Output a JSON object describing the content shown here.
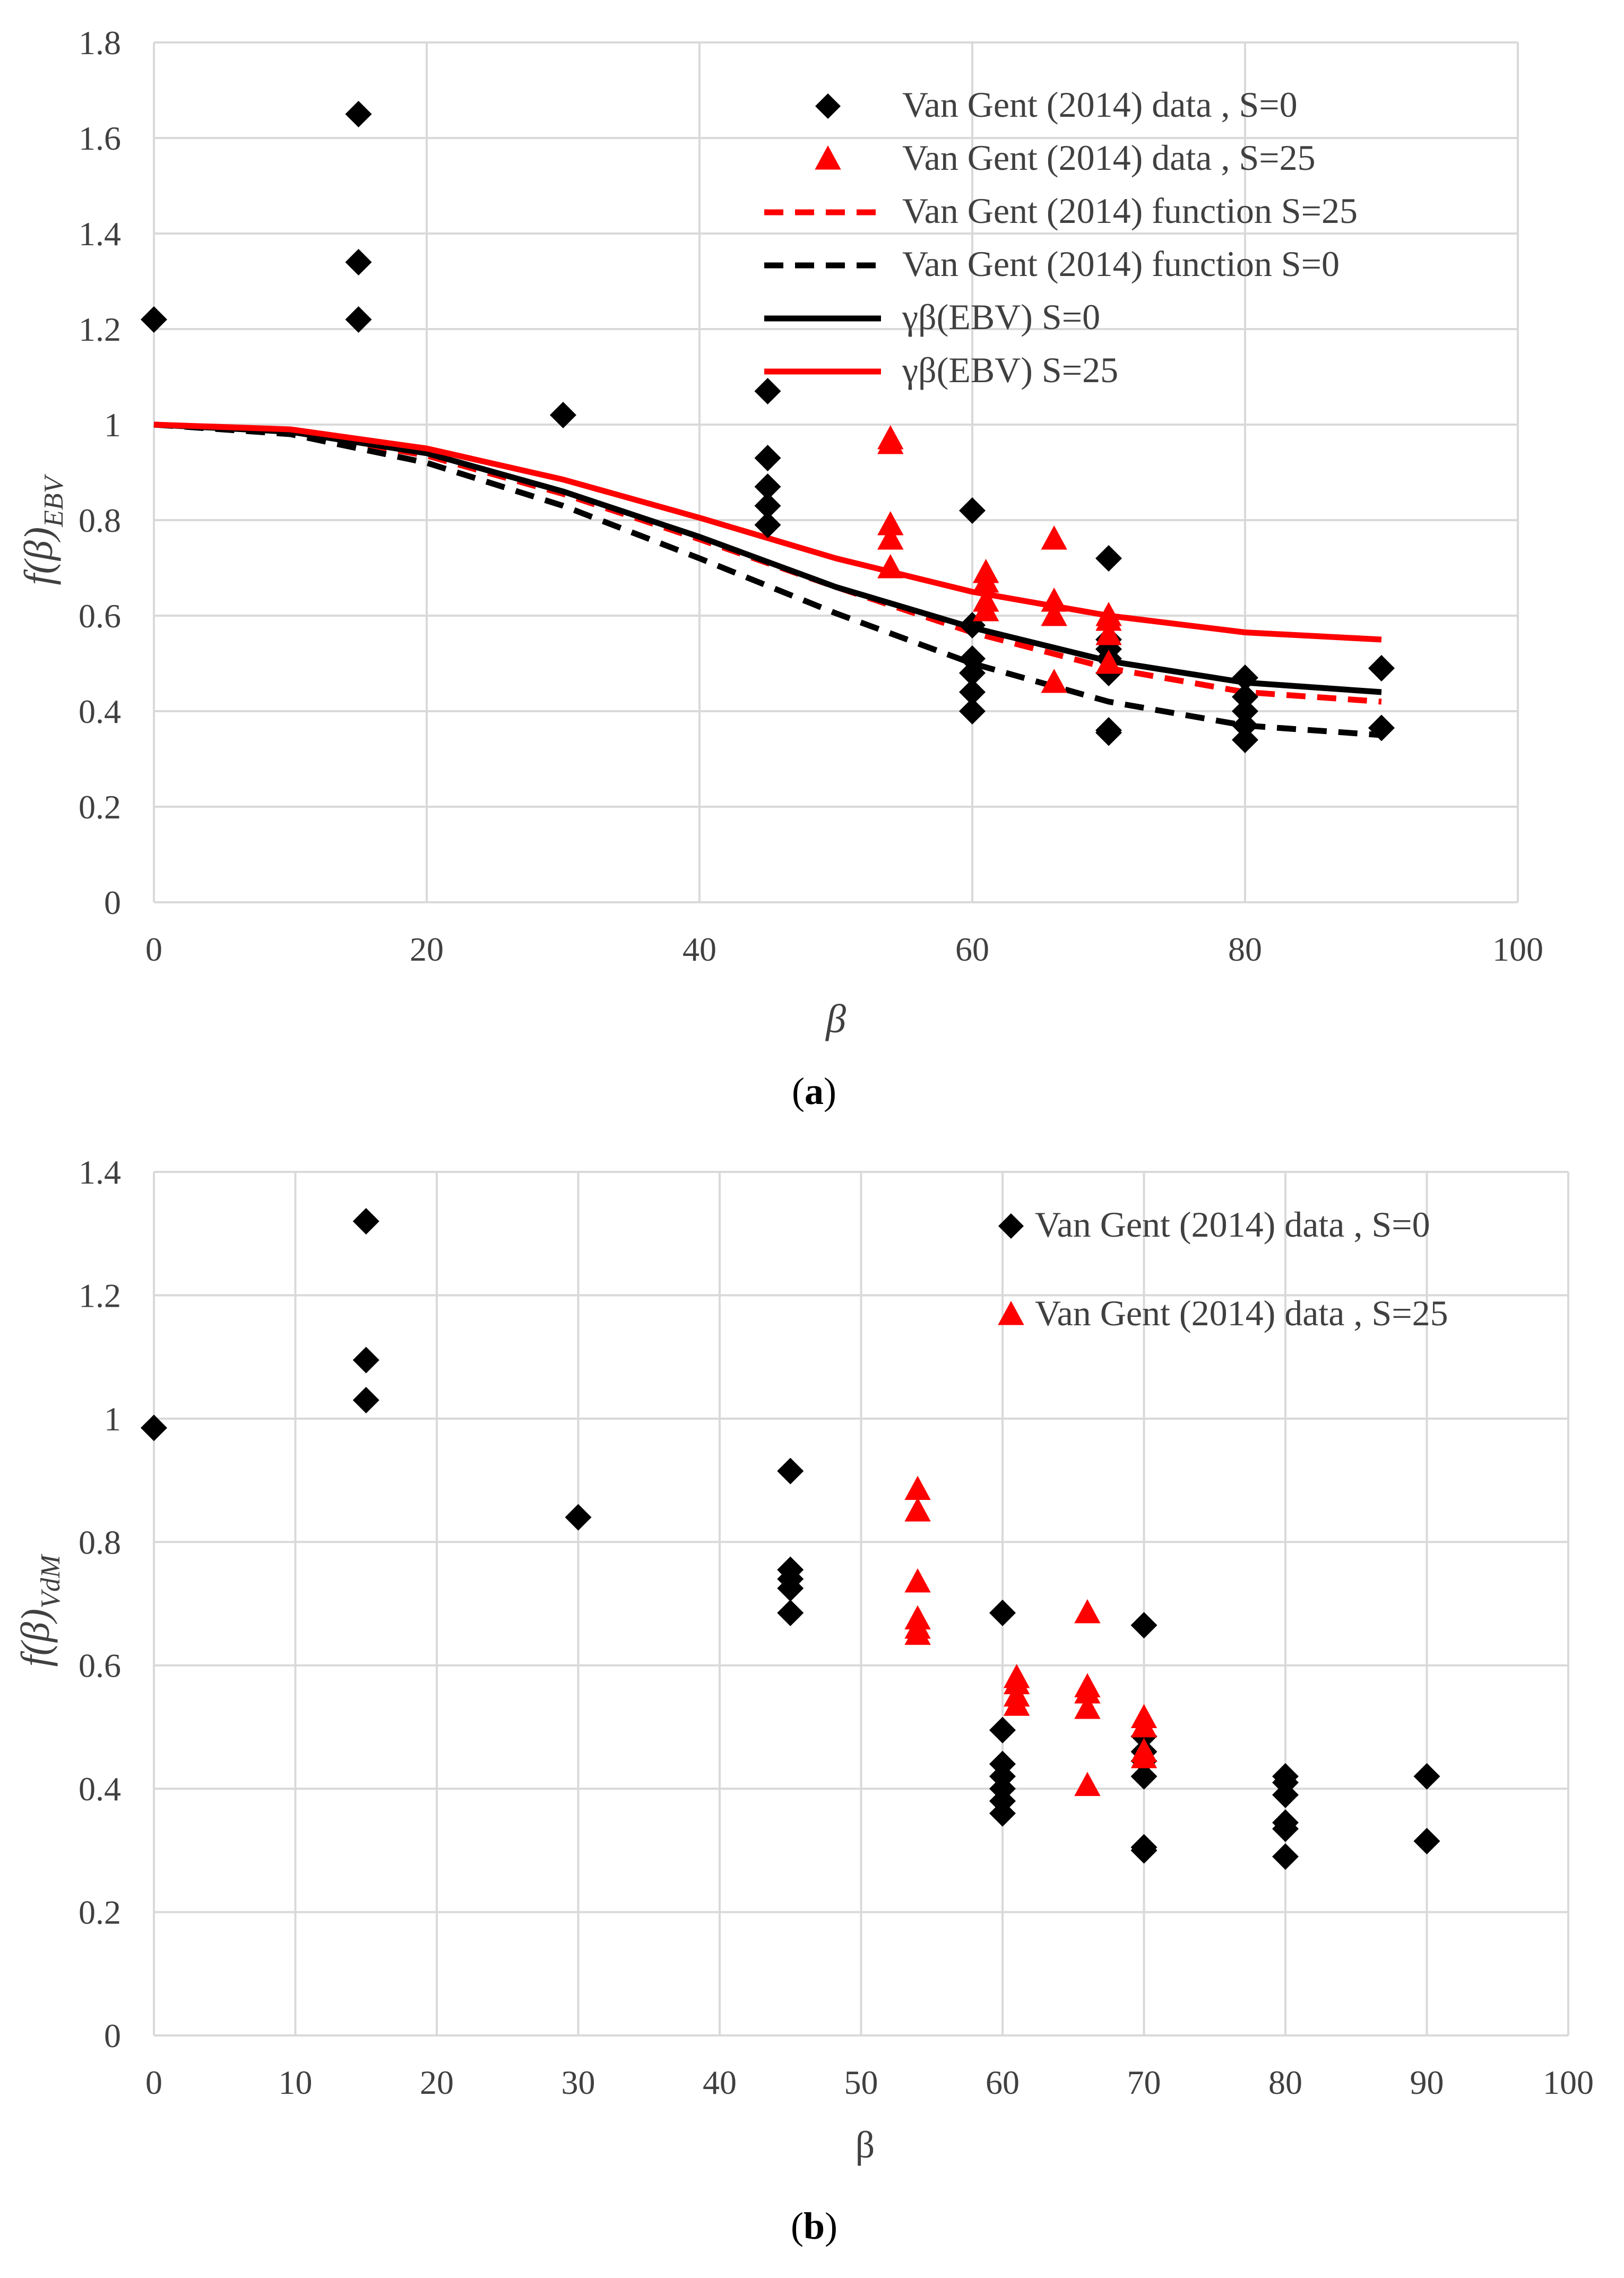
{
  "chart_data": [
    {
      "id": "a",
      "type": "scatter",
      "panel_label": "(a)",
      "panel_letter": "a",
      "xlabel": "β",
      "ylabel": {
        "main": "f(β)",
        "sub": "EBV"
      },
      "xlim": [
        0,
        100
      ],
      "ylim": [
        0,
        1.8
      ],
      "xticks": [
        0,
        20,
        40,
        60,
        80,
        100
      ],
      "yticks": [
        0,
        0.2,
        0.4,
        0.6,
        0.8,
        1,
        1.2,
        1.4,
        1.6,
        1.8
      ],
      "grid": true,
      "legend_placement": "top-right",
      "colors": {
        "black": "#000000",
        "red": "#ff0000"
      },
      "series": [
        {
          "name": "Van Gent  (2014) data , S=0",
          "kind": "points",
          "marker": "diamond",
          "color": "#000000",
          "points": [
            [
              0,
              1.22
            ],
            [
              15,
              1.65
            ],
            [
              15,
              1.34
            ],
            [
              15,
              1.22
            ],
            [
              30,
              1.02
            ],
            [
              45,
              1.07
            ],
            [
              45,
              0.93
            ],
            [
              45,
              0.87
            ],
            [
              45,
              0.83
            ],
            [
              45,
              0.79
            ],
            [
              60,
              0.82
            ],
            [
              60,
              0.58
            ],
            [
              60,
              0.51
            ],
            [
              60,
              0.48
            ],
            [
              60,
              0.44
            ],
            [
              60,
              0.4
            ],
            [
              70,
              0.72
            ],
            [
              70,
              0.55
            ],
            [
              70,
              0.53
            ],
            [
              70,
              0.51
            ],
            [
              70,
              0.48
            ],
            [
              70,
              0.36
            ],
            [
              70,
              0.355
            ],
            [
              80,
              0.47
            ],
            [
              80,
              0.43
            ],
            [
              80,
              0.4
            ],
            [
              80,
              0.37
            ],
            [
              80,
              0.34
            ],
            [
              90,
              0.49
            ],
            [
              90,
              0.365
            ]
          ]
        },
        {
          "name": "Van Gent  (2014) data , S=25",
          "kind": "points",
          "marker": "triangle",
          "color": "#ff0000",
          "points": [
            [
              54,
              0.97
            ],
            [
              54,
              0.96
            ],
            [
              54,
              0.79
            ],
            [
              54,
              0.76
            ],
            [
              54,
              0.7
            ],
            [
              61,
              0.69
            ],
            [
              61,
              0.67
            ],
            [
              61,
              0.63
            ],
            [
              61,
              0.61
            ],
            [
              66,
              0.76
            ],
            [
              66,
              0.63
            ],
            [
              66,
              0.6
            ],
            [
              66,
              0.46
            ],
            [
              70,
              0.6
            ],
            [
              70,
              0.59
            ],
            [
              70,
              0.56
            ],
            [
              70,
              0.5
            ]
          ]
        },
        {
          "name": "Van Gent (2014) function S=25",
          "kind": "line",
          "dash": true,
          "color": "#ff0000",
          "points": [
            [
              0,
              1.0
            ],
            [
              10,
              0.985
            ],
            [
              20,
              0.935
            ],
            [
              30,
              0.855
            ],
            [
              40,
              0.76
            ],
            [
              50,
              0.66
            ],
            [
              60,
              0.565
            ],
            [
              70,
              0.49
            ],
            [
              80,
              0.44
            ],
            [
              90,
              0.42
            ]
          ]
        },
        {
          "name": "Van Gent (2014)  function S=0",
          "kind": "line",
          "dash": true,
          "color": "#000000",
          "points": [
            [
              0,
              1.0
            ],
            [
              10,
              0.98
            ],
            [
              20,
              0.92
            ],
            [
              30,
              0.83
            ],
            [
              40,
              0.72
            ],
            [
              50,
              0.605
            ],
            [
              60,
              0.5
            ],
            [
              70,
              0.42
            ],
            [
              80,
              0.37
            ],
            [
              90,
              0.35
            ]
          ]
        },
        {
          "name": "γβ(EBV) S=0",
          "kind": "line",
          "dash": false,
          "color": "#000000",
          "points": [
            [
              0,
              1.0
            ],
            [
              10,
              0.985
            ],
            [
              20,
              0.94
            ],
            [
              30,
              0.86
            ],
            [
              40,
              0.765
            ],
            [
              50,
              0.66
            ],
            [
              60,
              0.575
            ],
            [
              70,
              0.505
            ],
            [
              80,
              0.46
            ],
            [
              90,
              0.44
            ]
          ]
        },
        {
          "name": "γβ(EBV) S=25",
          "kind": "line",
          "dash": false,
          "color": "#ff0000",
          "points": [
            [
              0,
              1.0
            ],
            [
              10,
              0.99
            ],
            [
              20,
              0.95
            ],
            [
              30,
              0.885
            ],
            [
              40,
              0.805
            ],
            [
              50,
              0.72
            ],
            [
              60,
              0.65
            ],
            [
              70,
              0.6
            ],
            [
              80,
              0.565
            ],
            [
              90,
              0.55
            ]
          ]
        }
      ]
    },
    {
      "id": "b",
      "type": "scatter",
      "panel_label": "(b)",
      "panel_letter": "b",
      "xlabel": "β",
      "ylabel": {
        "main": "f(β)",
        "sub": "VdM"
      },
      "xlim": [
        0,
        100
      ],
      "ylim": [
        0,
        1.4
      ],
      "xticks": [
        0,
        10,
        20,
        30,
        40,
        50,
        60,
        70,
        80,
        90,
        100
      ],
      "yticks": [
        0,
        0.2,
        0.4,
        0.6,
        0.8,
        1,
        1.2,
        1.4
      ],
      "grid": true,
      "legend_placement": "top-right",
      "colors": {
        "black": "#000000",
        "red": "#ff0000"
      },
      "series": [
        {
          "name": "Van Gent  (2014) data , S=0",
          "kind": "points",
          "marker": "diamond",
          "color": "#000000",
          "points": [
            [
              0,
              0.985
            ],
            [
              15,
              1.32
            ],
            [
              15,
              1.095
            ],
            [
              15,
              1.03
            ],
            [
              30,
              0.84
            ],
            [
              45,
              0.915
            ],
            [
              45,
              0.755
            ],
            [
              45,
              0.74
            ],
            [
              45,
              0.725
            ],
            [
              45,
              0.685
            ],
            [
              60,
              0.685
            ],
            [
              60,
              0.495
            ],
            [
              60,
              0.44
            ],
            [
              60,
              0.42
            ],
            [
              60,
              0.4
            ],
            [
              60,
              0.38
            ],
            [
              60,
              0.36
            ],
            [
              70,
              0.665
            ],
            [
              70,
              0.485
            ],
            [
              70,
              0.46
            ],
            [
              70,
              0.445
            ],
            [
              70,
              0.42
            ],
            [
              70,
              0.305
            ],
            [
              70,
              0.3
            ],
            [
              80,
              0.42
            ],
            [
              80,
              0.41
            ],
            [
              80,
              0.39
            ],
            [
              80,
              0.345
            ],
            [
              80,
              0.335
            ],
            [
              80,
              0.29
            ],
            [
              90,
              0.42
            ],
            [
              90,
              0.315
            ]
          ]
        },
        {
          "name": "Van Gent  (2014) data , S=25",
          "kind": "points",
          "marker": "triangle",
          "color": "#ff0000",
          "points": [
            [
              54,
              0.885
            ],
            [
              54,
              0.85
            ],
            [
              54,
              0.735
            ],
            [
              54,
              0.675
            ],
            [
              54,
              0.66
            ],
            [
              54,
              0.65
            ],
            [
              61,
              0.58
            ],
            [
              61,
              0.57
            ],
            [
              61,
              0.55
            ],
            [
              61,
              0.535
            ],
            [
              66,
              0.685
            ],
            [
              66,
              0.565
            ],
            [
              66,
              0.555
            ],
            [
              66,
              0.53
            ],
            [
              66,
              0.405
            ],
            [
              70,
              0.515
            ],
            [
              70,
              0.5
            ],
            [
              70,
              0.46
            ],
            [
              70,
              0.45
            ]
          ]
        }
      ]
    }
  ]
}
